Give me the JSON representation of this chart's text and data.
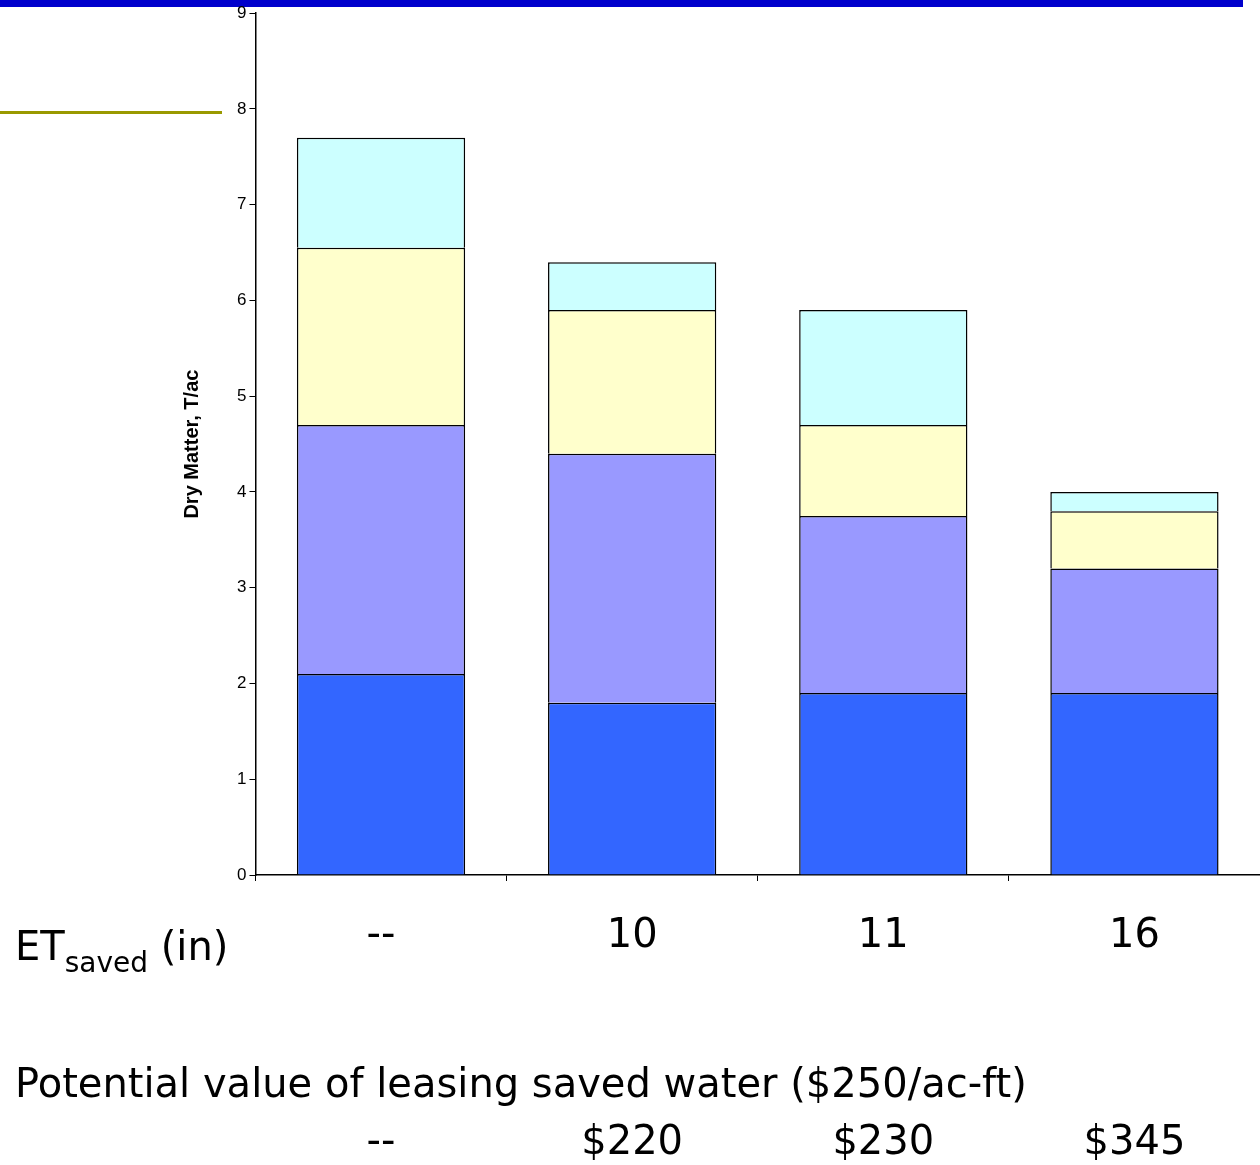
{
  "chart_data": {
    "type": "bar",
    "stacked": true,
    "ylabel": "Dry Matter, T/ac",
    "categories": [
      "--",
      "10",
      "11",
      "16"
    ],
    "series": [
      {
        "color": "#3366ff",
        "values": [
          2.1,
          1.8,
          1.9,
          1.9
        ]
      },
      {
        "color": "#9999ff",
        "values": [
          2.6,
          2.6,
          1.85,
          1.3
        ]
      },
      {
        "color": "#ffffcc",
        "values": [
          1.85,
          1.5,
          0.95,
          0.6
        ]
      },
      {
        "color": "#ccffff",
        "values": [
          1.15,
          0.5,
          1.2,
          0.2
        ]
      }
    ],
    "ylim": [
      0,
      9
    ],
    "yticks": [
      0,
      1,
      2,
      3,
      4,
      5,
      6,
      7,
      8,
      9
    ],
    "grid": false,
    "legend": false,
    "annotations": [
      "ET$_{saved}$ (in)",
      "Potential value of leasing saved water ($250/ac-ft)",
      "--",
      "$220",
      "$230",
      "$345"
    ]
  }
}
